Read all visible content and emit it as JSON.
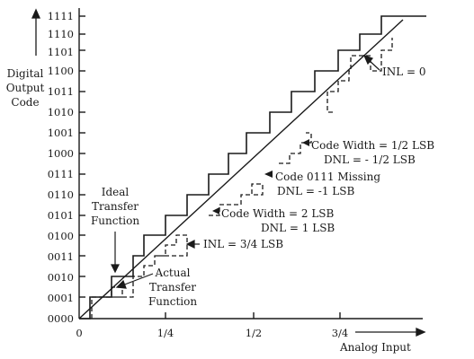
{
  "diagram": {
    "y_axis_label_lines": [
      "Digital",
      "Output",
      "Code"
    ],
    "x_axis_label": "Analog Input",
    "y_ticks": [
      "0000",
      "0001",
      "0010",
      "0011",
      "0100",
      "0101",
      "0110",
      "0111",
      "1000",
      "1001",
      "1010",
      "1011",
      "1100",
      "1101",
      "1110",
      "1111"
    ],
    "x_ticks": [
      "0",
      "1/4",
      "1/2",
      "3/4"
    ],
    "annotations": {
      "ideal_lines": [
        "Ideal",
        "Transfer",
        "Function"
      ],
      "actual_lines": [
        "Actual",
        "Transfer",
        "Function"
      ],
      "inl_zero": "INL = 0",
      "code_width_half_1": "Code Width = 1/2 LSB",
      "code_width_half_2": "DNL = - 1/2 LSB",
      "missing_1": "Code 0111 Missing",
      "missing_2": "DNL = -1 LSB",
      "code_width_two_1": "Code Width = 2 LSB",
      "code_width_two_2": "DNL = 1 LSB",
      "inl_three_quarter": "INL = 3/4 LSB"
    }
  }
}
